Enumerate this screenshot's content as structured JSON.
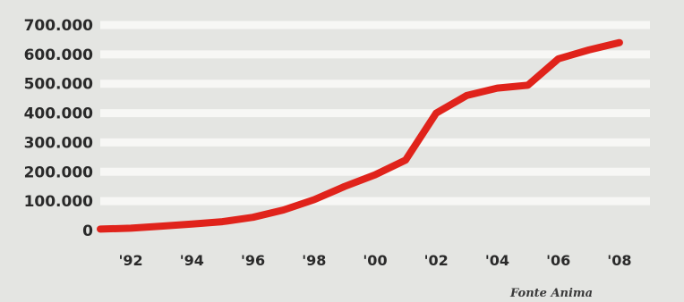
{
  "chart_data": {
    "type": "line",
    "title": "",
    "xlabel": "",
    "ylabel": "",
    "x": [
      1991,
      1992,
      1993,
      1994,
      1995,
      1996,
      1997,
      1998,
      1999,
      2000,
      2001,
      2002,
      2003,
      2004,
      2005,
      2006,
      2007,
      2008
    ],
    "series": [
      {
        "values": [
          5000,
          8000,
          15000,
          22000,
          30000,
          45000,
          70000,
          105000,
          150000,
          190000,
          240000,
          400000,
          460000,
          485000,
          495000,
          585000,
          615000,
          640000
        ],
        "color": "#e0231b"
      }
    ],
    "ylim": [
      0,
      700000
    ],
    "xlim": [
      1991,
      2009
    ],
    "y_ticks": [
      0,
      100000,
      200000,
      300000,
      400000,
      500000,
      600000,
      700000
    ],
    "y_tick_labels": [
      "0",
      "100.000",
      "200.000",
      "300.000",
      "400.000",
      "500.000",
      "600.000",
      "700.000"
    ],
    "x_ticks": [
      1992,
      1994,
      1996,
      1998,
      2000,
      2002,
      2004,
      2006,
      2008
    ],
    "x_tick_labels": [
      "'92",
      "'94",
      "'96",
      "'98",
      "'00",
      "'02",
      "'04",
      "'06",
      "'08"
    ],
    "grid": true,
    "grid_axis": "y",
    "legend": "none",
    "source_note": "Fonte Anima"
  },
  "colors": {
    "background": "#e4e5e2",
    "gridline": "#f7f7f5",
    "line": "#e0231b",
    "text": "#2a2a2a"
  }
}
